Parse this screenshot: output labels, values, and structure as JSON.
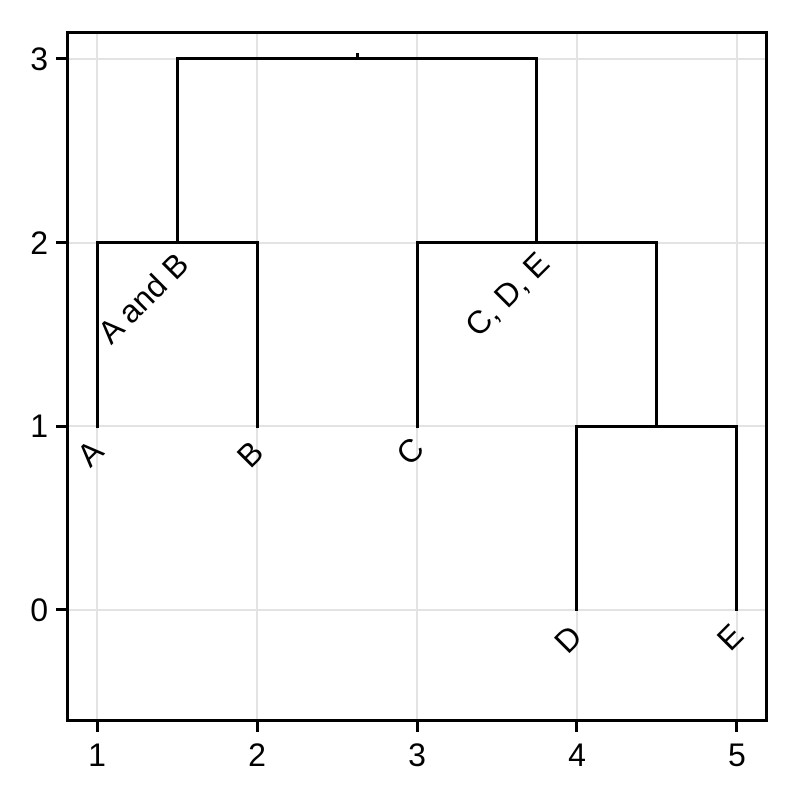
{
  "page": {
    "background": "#ffffff"
  },
  "chart_data": {
    "type": "dendrogram",
    "title": "",
    "xlabel": "",
    "ylabel": "",
    "xlim": [
      0.806,
      5.194
    ],
    "ylim": [
      -0.61,
      3.152
    ],
    "x_ticks": [
      1,
      2,
      3,
      4,
      5
    ],
    "y_ticks": [
      0,
      1,
      2,
      3
    ],
    "grid": true,
    "legend": "none",
    "line_color": "#000000",
    "grid_color": "#e3e3e3",
    "frame_color": "#000000",
    "tick_label_color": "#000000",
    "leaves": [
      {
        "label": "A",
        "x": 1,
        "stem_base": 1,
        "stem_top": 2
      },
      {
        "label": "B",
        "x": 2,
        "stem_base": 1,
        "stem_top": 2
      },
      {
        "label": "C",
        "x": 3,
        "stem_base": 1,
        "stem_top": 2
      },
      {
        "label": "D",
        "x": 4,
        "stem_base": 0,
        "stem_top": 1
      },
      {
        "label": "E",
        "x": 5,
        "stem_base": 0,
        "stem_top": 1
      }
    ],
    "merges": [
      {
        "members": "D,E",
        "children_x": [
          4,
          5
        ],
        "height": 1,
        "node_x": 4.5
      },
      {
        "members": "A,B",
        "children_x": [
          1,
          2
        ],
        "height": 2,
        "node_x": 1.5
      },
      {
        "members": "C,(D,E)",
        "children_x": [
          3,
          4.5
        ],
        "height": 2,
        "node_x": 3.75
      },
      {
        "members": "root",
        "children_x": [
          1.5,
          3.75
        ],
        "height": 3,
        "node_x": 2.625
      }
    ],
    "segments": [
      {
        "x1": 1,
        "y1": 1,
        "x2": 1,
        "y2": 2
      },
      {
        "x1": 2,
        "y1": 1,
        "x2": 2,
        "y2": 2
      },
      {
        "x1": 1,
        "y1": 2,
        "x2": 2,
        "y2": 2
      },
      {
        "x1": 1.5,
        "y1": 2,
        "x2": 1.5,
        "y2": 3
      },
      {
        "x1": 3,
        "y1": 1,
        "x2": 3,
        "y2": 2
      },
      {
        "x1": 4,
        "y1": 0,
        "x2": 4,
        "y2": 1
      },
      {
        "x1": 5,
        "y1": 0,
        "x2": 5,
        "y2": 1
      },
      {
        "x1": 4,
        "y1": 1,
        "x2": 5,
        "y2": 1
      },
      {
        "x1": 4.5,
        "y1": 1,
        "x2": 4.5,
        "y2": 2
      },
      {
        "x1": 3,
        "y1": 2,
        "x2": 4.5,
        "y2": 2
      },
      {
        "x1": 3.75,
        "y1": 2,
        "x2": 3.75,
        "y2": 3
      },
      {
        "x1": 1.5,
        "y1": 3,
        "x2": 3.75,
        "y2": 3
      },
      {
        "x1": 2.625,
        "y1": 3,
        "x2": 2.625,
        "y2": 3.025
      }
    ],
    "leaf_labels": [
      {
        "text": "A",
        "x": 0.956,
        "y": 0.853,
        "rotation": -45
      },
      {
        "text": "B",
        "x": 1.956,
        "y": 0.848,
        "rotation": -45
      },
      {
        "text": "C",
        "x": 2.956,
        "y": 0.866,
        "rotation": -45
      },
      {
        "text": "D",
        "x": 3.944,
        "y": -0.158,
        "rotation": -45
      },
      {
        "text": "E",
        "x": 4.956,
        "y": -0.147,
        "rotation": -45
      }
    ],
    "annotations": [
      {
        "text": "A and B",
        "x": 1.29,
        "y": 1.7,
        "rotation": -45
      },
      {
        "text": "C, D, E",
        "x": 3.56,
        "y": 1.72,
        "rotation": -45
      }
    ]
  }
}
